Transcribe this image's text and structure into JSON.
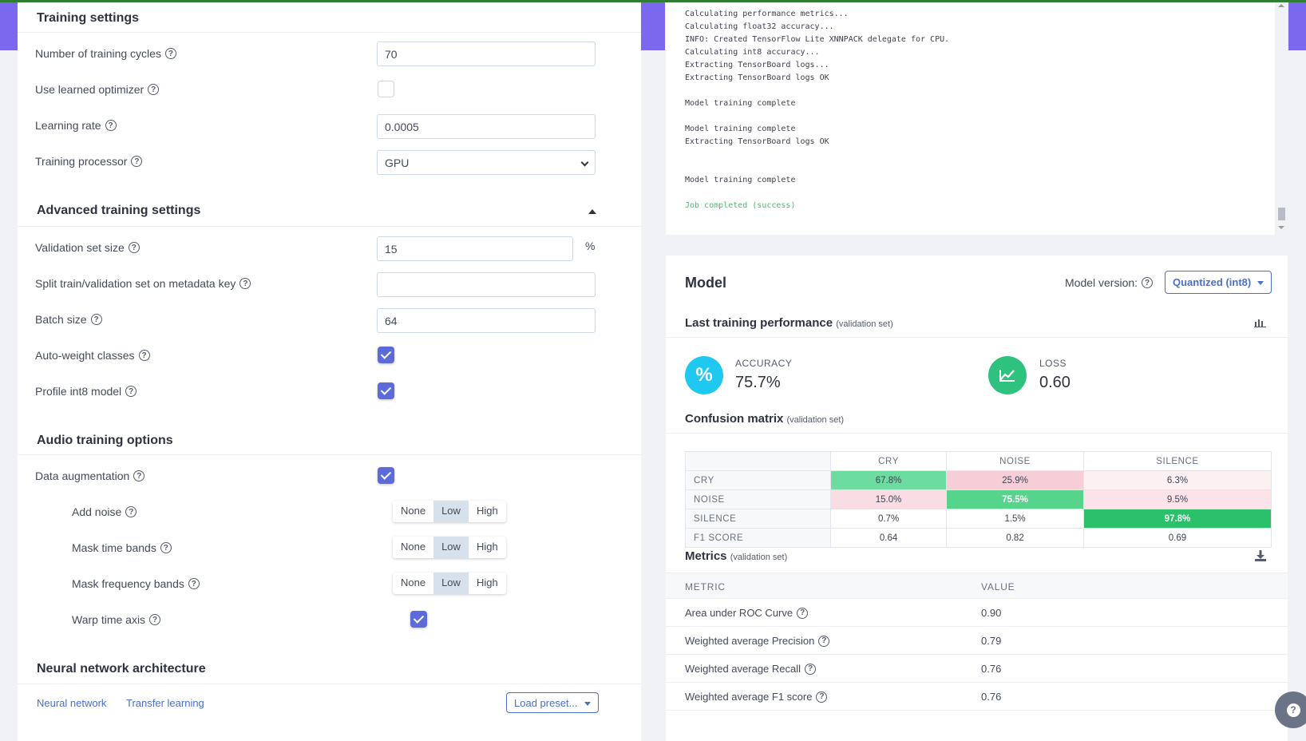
{
  "colors": {
    "accent": "#7b68ee",
    "primary": "#5d6ad9",
    "link": "#4a6fc9",
    "success": "#3fbf6b",
    "accuracy_icon": "#1ec8f0",
    "loss_icon": "#2ec27e"
  },
  "training": {
    "section_title": "Training settings",
    "cycles_label": "Number of training cycles",
    "cycles_value": "70",
    "learned_optimizer_label": "Use learned optimizer",
    "learned_optimizer_checked": false,
    "learning_rate_label": "Learning rate",
    "learning_rate_value": "0.0005",
    "processor_label": "Training processor",
    "processor_value": "GPU"
  },
  "advanced": {
    "section_title": "Advanced training settings",
    "validation_label": "Validation set size",
    "validation_value": "15",
    "validation_unit": "%",
    "split_label": "Split train/validation set on metadata key",
    "split_value": "",
    "batch_label": "Batch size",
    "batch_value": "64",
    "autoweight_label": "Auto-weight classes",
    "autoweight_checked": true,
    "profile_label": "Profile int8 model",
    "profile_checked": true
  },
  "audio": {
    "section_title": "Audio training options",
    "augmentation_label": "Data augmentation",
    "augmentation_checked": true,
    "segment_options": [
      "None",
      "Low",
      "High"
    ],
    "add_noise_label": "Add noise",
    "add_noise_selected": "Low",
    "mask_time_label": "Mask time bands",
    "mask_time_selected": "Low",
    "mask_freq_label": "Mask frequency bands",
    "mask_freq_selected": "Low",
    "warp_label": "Warp time axis",
    "warp_checked": true
  },
  "architecture": {
    "section_title": "Neural network architecture",
    "tab_nn": "Neural network",
    "tab_tl": "Transfer learning",
    "preset_button": "Load preset..."
  },
  "log": {
    "lines": [
      "Calculating performance metrics...",
      "Calculating float32 accuracy...",
      "INFO: Created TensorFlow Lite XNNPACK delegate for CPU.",
      "Calculating int8 accuracy...",
      "Extracting TensorBoard logs...",
      "Extracting TensorBoard logs OK",
      "Model training complete",
      "Model training complete",
      "Extracting TensorBoard logs OK",
      "Model training complete",
      "Job completed (success)"
    ]
  },
  "model": {
    "title": "Model",
    "version_label": "Model version:",
    "version_value": "Quantized (int8)",
    "perf_title": "Last training performance",
    "perf_subtitle": "(validation set)",
    "accuracy_label": "ACCURACY",
    "accuracy_value": "75.7%",
    "loss_label": "LOSS",
    "loss_value": "0.60",
    "confusion_title": "Confusion matrix",
    "confusion_subtitle": "(validation set)",
    "metrics_title": "Metrics",
    "metrics_subtitle": "(validation set)"
  },
  "confusion": {
    "columns": [
      "CRY",
      "NOISE",
      "SILENCE"
    ],
    "rows": [
      {
        "label": "CRY",
        "cells": [
          "67.8%",
          "25.9%",
          "6.3%"
        ]
      },
      {
        "label": "NOISE",
        "cells": [
          "15.0%",
          "75.5%",
          "9.5%"
        ]
      },
      {
        "label": "SILENCE",
        "cells": [
          "0.7%",
          "1.5%",
          "97.8%"
        ]
      },
      {
        "label": "F1 SCORE",
        "cells": [
          "0.64",
          "0.82",
          "0.69"
        ]
      }
    ]
  },
  "metrics": {
    "col_metric": "METRIC",
    "col_value": "VALUE",
    "rows": [
      {
        "name": "Area under ROC Curve",
        "value": "0.90"
      },
      {
        "name": "Weighted average Precision",
        "value": "0.79"
      },
      {
        "name": "Weighted average Recall",
        "value": "0.76"
      },
      {
        "name": "Weighted average F1 score",
        "value": "0.76"
      }
    ]
  }
}
